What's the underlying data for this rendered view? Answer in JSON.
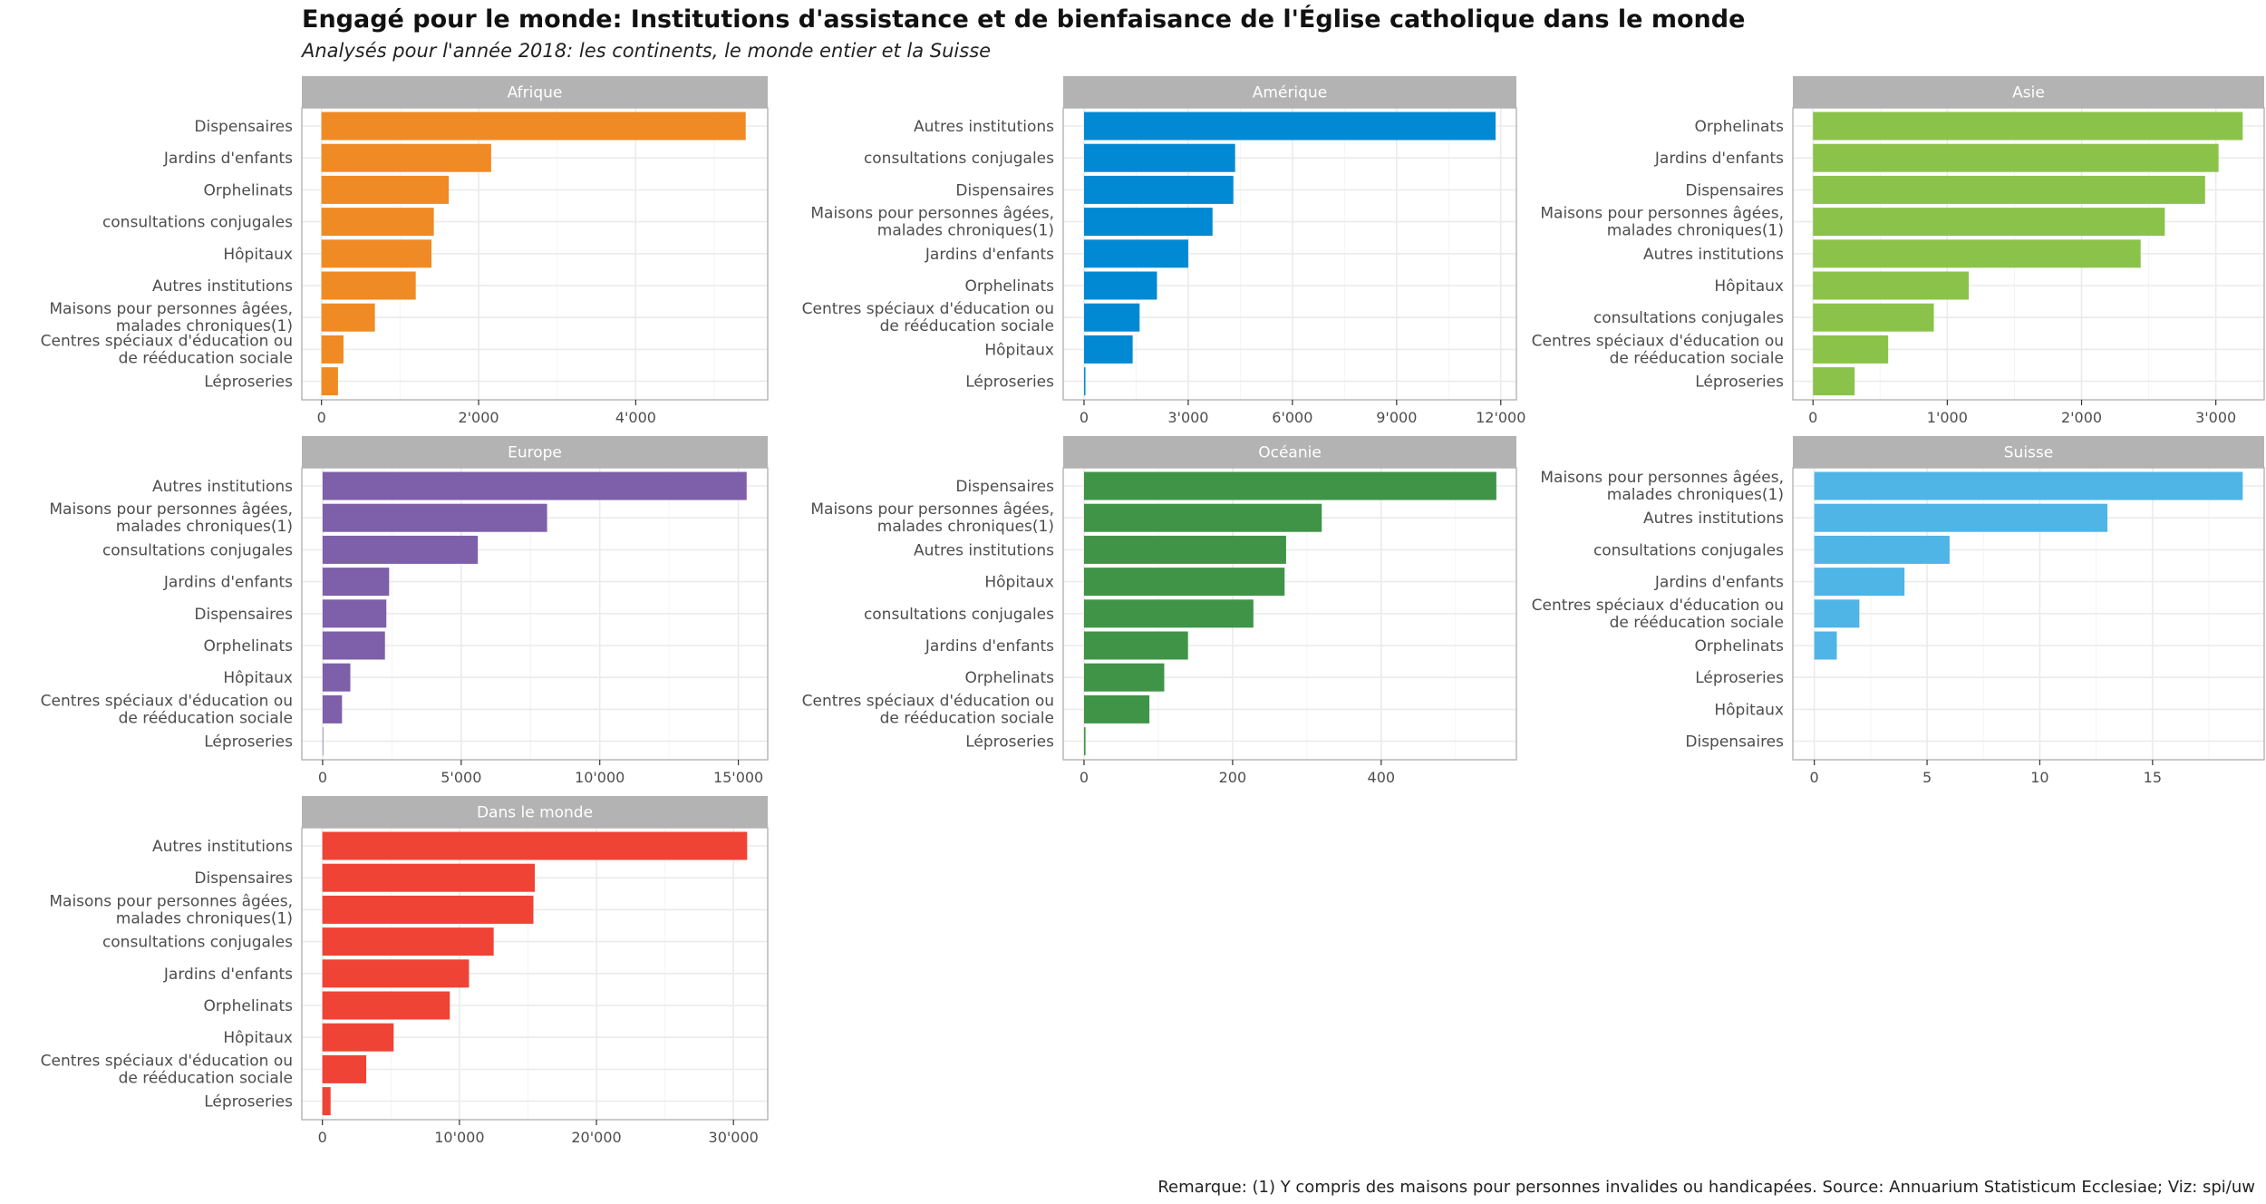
{
  "title": "Engagé pour le monde: Institutions d'assistance et de bienfaisance de l'Église catholique dans le monde",
  "subtitle": "Analysés pour l'année 2018: les continents, le monde entier et la Suisse",
  "caption": "Remarque: (1) Y compris des maisons pour personnes invalides ou handicapées. Source: Annuarium Statisticum Ecclesiae; Viz: spi/uw",
  "chart_data": [
    {
      "type": "bar",
      "orientation": "horizontal",
      "title": "Afrique",
      "color": "#F08A24",
      "categories": [
        "Dispensaires",
        "Jardins d'enfants",
        "Orphelinats",
        "consultations conjugales",
        "Hôpitaux",
        "Autres institutions",
        "Maisons pour personnes âgées,\nmalades chroniques(1)",
        "Centres spéciaux d'éducation ou\nde rééducation sociale",
        "Léproseries"
      ],
      "values": [
        5400,
        2160,
        1620,
        1430,
        1400,
        1200,
        680,
        280,
        210
      ],
      "xlim": [
        -250,
        5680
      ],
      "ticks": [
        0,
        2000,
        4000
      ],
      "tick_labels": [
        "0",
        "2'000",
        "4'000"
      ]
    },
    {
      "type": "bar",
      "orientation": "horizontal",
      "title": "Amérique",
      "color": "#0289D3",
      "categories": [
        "Autres institutions",
        "consultations conjugales",
        "Dispensaires",
        "Maisons pour personnes âgées,\nmalades chroniques(1)",
        "Jardins d'enfants",
        "Orphelinats",
        "Centres spéciaux d'éducation ou\nde rééducation sociale",
        "Hôpitaux",
        "Léproseries"
      ],
      "values": [
        11850,
        4350,
        4300,
        3700,
        3000,
        2100,
        1600,
        1400,
        40
      ],
      "xlim": [
        -600,
        12450
      ],
      "ticks": [
        0,
        3000,
        6000,
        9000,
        12000
      ],
      "tick_labels": [
        "0",
        "3'000",
        "6'000",
        "9'000",
        "12'000"
      ]
    },
    {
      "type": "bar",
      "orientation": "horizontal",
      "title": "Asie",
      "color": "#8BC34A",
      "categories": [
        "Orphelinats",
        "Jardins d'enfants",
        "Dispensaires",
        "Maisons pour personnes âgées,\nmalades chroniques(1)",
        "Autres institutions",
        "Hôpitaux",
        "consultations conjugales",
        "Centres spéciaux d'éducation ou\nde rééducation sociale",
        "Léproseries"
      ],
      "values": [
        3200,
        3020,
        2920,
        2620,
        2440,
        1160,
        900,
        560,
        310
      ],
      "xlim": [
        -150,
        3360
      ],
      "ticks": [
        0,
        1000,
        2000,
        3000
      ],
      "tick_labels": [
        "0",
        "1'000",
        "2'000",
        "3'000"
      ]
    },
    {
      "type": "bar",
      "orientation": "horizontal",
      "title": "Europe",
      "color": "#7E5FAA",
      "categories": [
        "Autres institutions",
        "Maisons pour personnes âgées,\nmalades chroniques(1)",
        "consultations conjugales",
        "Jardins d'enfants",
        "Dispensaires",
        "Orphelinats",
        "Hôpitaux",
        "Centres spéciaux d'éducation ou\nde rééducation sociale",
        "Léproseries"
      ],
      "values": [
        15300,
        8100,
        5600,
        2400,
        2300,
        2250,
        1000,
        700,
        20
      ],
      "xlim": [
        -750,
        16060
      ],
      "ticks": [
        0,
        5000,
        10000,
        15000
      ],
      "tick_labels": [
        "0",
        "5'000",
        "10'000",
        "15'000"
      ]
    },
    {
      "type": "bar",
      "orientation": "horizontal",
      "title": "Océanie",
      "color": "#3F9448",
      "categories": [
        "Dispensaires",
        "Maisons pour personnes âgées,\nmalades chroniques(1)",
        "Autres institutions",
        "Hôpitaux",
        "consultations conjugales",
        "Jardins d'enfants",
        "Orphelinats",
        "Centres spéciaux d'éducation ou\nde rééducation sociale",
        "Léproseries"
      ],
      "values": [
        555,
        320,
        272,
        270,
        228,
        140,
        108,
        88,
        2
      ],
      "xlim": [
        -28,
        582
      ],
      "ticks": [
        0,
        200,
        400
      ],
      "tick_labels": [
        "0",
        "200",
        "400"
      ]
    },
    {
      "type": "bar",
      "orientation": "horizontal",
      "title": "Suisse",
      "color": "#4EB5E6",
      "categories": [
        "Maisons pour personnes âgées,\nmalades chroniques(1)",
        "Autres institutions",
        "consultations conjugales",
        "Jardins d'enfants",
        "Centres spéciaux d'éducation ou\nde rééducation sociale",
        "Orphelinats",
        "Léproseries",
        "Hôpitaux",
        "Dispensaires"
      ],
      "values": [
        19,
        13,
        6,
        4,
        2,
        1,
        0,
        0,
        0
      ],
      "xlim": [
        -0.95,
        19.95
      ],
      "ticks": [
        0,
        5,
        10,
        15
      ],
      "tick_labels": [
        "0",
        "5",
        "10",
        "15"
      ]
    },
    {
      "type": "bar",
      "orientation": "horizontal",
      "title": "Dans le monde",
      "color": "#EF4335",
      "categories": [
        "Autres institutions",
        "Dispensaires",
        "Maisons pour personnes âgées,\nmalades chroniques(1)",
        "consultations conjugales",
        "Jardins d'enfants",
        "Orphelinats",
        "Hôpitaux",
        "Centres spéciaux d'éducation ou\nde rééducation sociale",
        "Léproseries"
      ],
      "values": [
        31000,
        15500,
        15400,
        12500,
        10700,
        9300,
        5200,
        3200,
        600
      ],
      "xlim": [
        -1500,
        32500
      ],
      "ticks": [
        0,
        10000,
        20000,
        30000
      ],
      "tick_labels": [
        "0",
        "10'000",
        "20'000",
        "30'000"
      ]
    }
  ]
}
